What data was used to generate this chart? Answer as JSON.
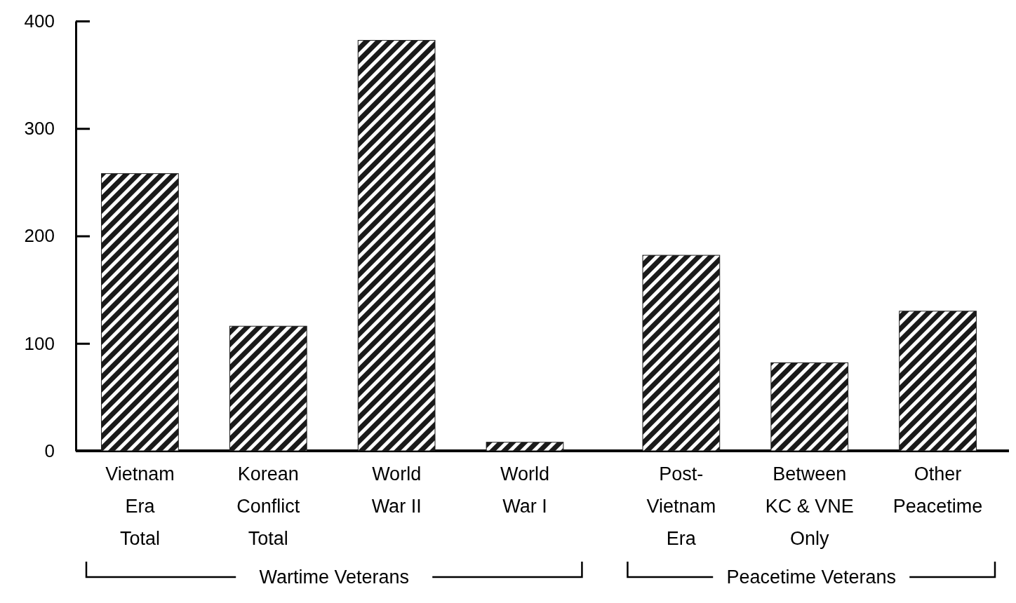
{
  "chart_data": {
    "type": "bar",
    "categories": [
      "Vietnam\nEra\nTotal",
      "Korean\nConflict\nTotal",
      "World\nWar II",
      "World\nWar I",
      "Post-\nVietnam\nEra",
      "Between\nKC & VNE\nOnly",
      "Other\nPeacetime"
    ],
    "values": [
      258,
      116,
      382,
      8,
      182,
      82,
      130
    ],
    "color": "#1a1a1a",
    "ylim": [
      0,
      400
    ],
    "yticks": [
      0,
      100,
      200,
      300,
      400
    ],
    "annotations": [
      "Wartime Veterans",
      "Peacetime Veterans"
    ]
  }
}
